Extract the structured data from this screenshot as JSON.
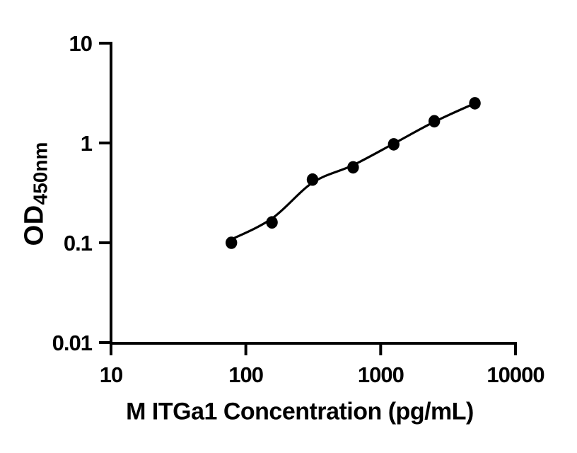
{
  "figure": {
    "background_color": "#ffffff",
    "ink_color": "#000000"
  },
  "chart_data": {
    "type": "scatter",
    "title": "",
    "xlabel": "M ITGa1 Concentration (pg/mL)",
    "ylabel_main": "OD",
    "ylabel_sub": "450nm",
    "x_scale": "log",
    "y_scale": "log",
    "xlim": [
      10,
      10000
    ],
    "ylim": [
      0.01,
      10
    ],
    "grid": false,
    "legend_position": "none",
    "x_ticks": [
      {
        "value": 10,
        "label": "10"
      },
      {
        "value": 100,
        "label": "100"
      },
      {
        "value": 1000,
        "label": "1000"
      },
      {
        "value": 10000,
        "label": "10000"
      }
    ],
    "y_ticks": [
      {
        "value": 0.01,
        "label": "0.01"
      },
      {
        "value": 0.1,
        "label": "0.1"
      },
      {
        "value": 1,
        "label": "1"
      },
      {
        "value": 10,
        "label": "10"
      }
    ],
    "series": [
      {
        "name": "standard-points",
        "marker": "filled-circle",
        "color": "#000000",
        "x": [
          78.125,
          156.25,
          312.5,
          625,
          1250,
          2500,
          5000
        ],
        "y": [
          0.1,
          0.16,
          0.43,
          0.57,
          0.97,
          1.65,
          2.5
        ]
      }
    ],
    "fit_curve": {
      "name": "four-parameter-fit-line",
      "color": "#000000",
      "x": [
        78.125,
        156.25,
        312.5,
        625,
        1250,
        2500,
        5000
      ],
      "y": [
        0.108,
        0.175,
        0.4,
        0.6,
        0.985,
        1.63,
        2.5
      ]
    }
  }
}
